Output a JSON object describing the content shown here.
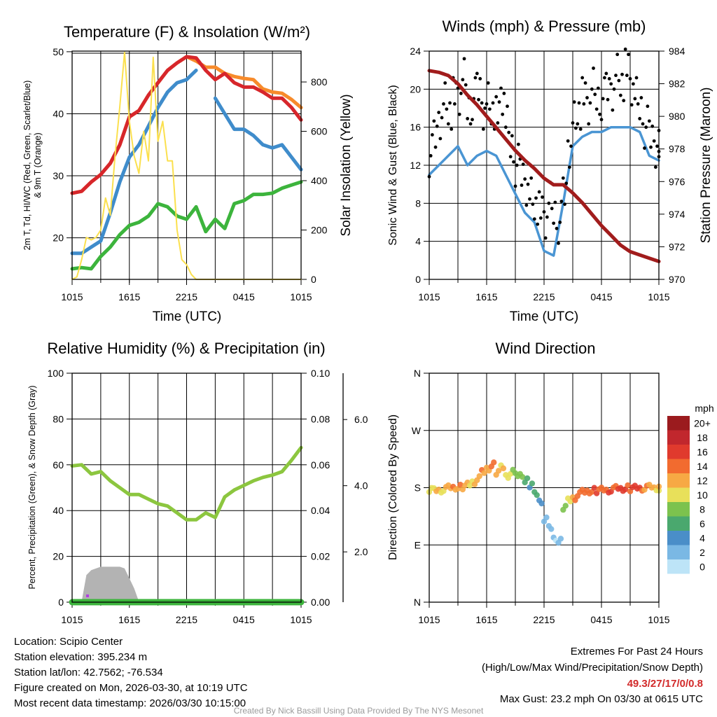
{
  "chart_data": [
    {
      "type": "line",
      "title": "Temperature (F) & Insolation (W/m²)",
      "xlabel": "Time (UTC)",
      "ylabel_lines": [
        "2m T, Td, HI/WC (Red, Green, Scarlet/Blue)",
        "& 9m T (Orange)"
      ],
      "ylabel_right": "Solar Insolation (Yellow)",
      "x_tick_labels": [
        "1015",
        "1615",
        "2215",
        "0415",
        "1015"
      ],
      "y_ticks": [
        20,
        30,
        40,
        50
      ],
      "y_right_ticks": [
        0,
        200,
        400,
        600,
        800
      ],
      "ylim": [
        13.3,
        50.1
      ],
      "ylim_right": [
        0,
        925
      ],
      "x_range_hours": [
        0,
        24
      ],
      "series": [
        {
          "name": "9m T",
          "color": "#f78b2b",
          "axis": "left",
          "step_hours": 1,
          "values": [
            27.2,
            27.5,
            29,
            30.2,
            32,
            35,
            39.5,
            40.5,
            43,
            45,
            47,
            48.2,
            49.2,
            48.5,
            47.5,
            47.5,
            46.5,
            46,
            45.7,
            45.5,
            44,
            43.5,
            43.3,
            42.3,
            41
          ]
        },
        {
          "name": "2m T",
          "color": "#d7262b",
          "axis": "left",
          "step_hours": 1,
          "values": [
            27.2,
            27.5,
            29,
            30.2,
            32,
            35,
            39.5,
            40.5,
            43,
            45,
            47,
            48.2,
            49.2,
            49,
            47,
            45.5,
            46.5,
            45,
            44.3,
            44.3,
            43.5,
            42.5,
            42.5,
            41,
            39
          ]
        },
        {
          "name": "HI/WC",
          "color": "#3f8ccb",
          "axis": "left",
          "step_hours": 1,
          "values": [
            17.5,
            17.5,
            18.5,
            19.5,
            24,
            29,
            33,
            35,
            38,
            41,
            43.5,
            45,
            45.5,
            47,
            null,
            42.5,
            40,
            37.5,
            37.5,
            36.5,
            35,
            34.5,
            35,
            33,
            31
          ]
        },
        {
          "name": "Td",
          "color": "#3cb43c",
          "axis": "left",
          "step_hours": 1,
          "values": [
            15,
            15.2,
            15,
            17,
            18.5,
            20.5,
            22,
            22.5,
            23.5,
            25.5,
            25,
            23.5,
            23,
            25,
            21,
            23,
            21.5,
            25.5,
            26,
            27,
            27,
            27.2,
            28,
            28.5,
            29
          ]
        },
        {
          "name": "Solar Insolation",
          "color": "#fbe04e",
          "axis": "right",
          "step_hours": 0.5,
          "values": [
            0,
            10,
            80,
            170,
            160,
            170,
            200,
            330,
            260,
            500,
            700,
            920,
            640,
            500,
            430,
            600,
            480,
            900,
            560,
            640,
            480,
            480,
            200,
            80,
            60,
            20,
            0,
            0,
            0,
            0,
            0,
            0,
            0,
            0,
            0,
            0,
            0,
            0,
            0,
            0,
            0,
            0,
            0,
            0,
            0,
            0,
            0,
            0,
            0
          ]
        }
      ]
    },
    {
      "type": "line",
      "title": "Winds (mph) & Pressure (mb)",
      "xlabel": "Time (UTC)",
      "ylabel": "Sonic Wind & Gust (Blue, Black)",
      "ylabel_right": "Station Pressure (Maroon)",
      "x_tick_labels": [
        "1015",
        "1615",
        "2215",
        "0415",
        "1015"
      ],
      "y_ticks": [
        0,
        4,
        8,
        12,
        16,
        20,
        24
      ],
      "y_right_ticks": [
        970,
        972,
        974,
        976,
        978,
        980,
        982,
        984
      ],
      "ylim": [
        0,
        24
      ],
      "ylim_right": [
        970,
        984
      ],
      "x_range_hours": [
        0,
        24
      ],
      "series": [
        {
          "name": "Sonic Wind",
          "color": "#4a95d3",
          "axis": "left",
          "step_hours": 1,
          "values": [
            11,
            12,
            13,
            14,
            12,
            13,
            13.5,
            13,
            11,
            9,
            7,
            6,
            3,
            2.5,
            8,
            14,
            15,
            15.5,
            15.5,
            16,
            16,
            16,
            15.5,
            13,
            12.5
          ]
        },
        {
          "name": "Gust",
          "color": "#000000",
          "axis": "left",
          "step_hours": 0.5,
          "style": "points",
          "values": [
            13,
            15,
            17,
            19,
            18,
            19,
            19,
            21,
            18,
            19,
            20,
            18,
            19,
            18,
            17,
            19,
            16,
            14,
            12,
            11,
            10,
            9,
            8,
            7,
            6,
            8,
            7,
            6,
            9,
            14,
            17,
            18,
            19,
            18,
            20,
            19,
            19,
            20,
            20,
            22,
            21,
            22,
            20,
            19,
            18,
            16,
            15,
            14,
            14
          ]
        },
        {
          "name": "Station Pressure",
          "color": "#a11c1c",
          "axis": "right",
          "step_hours": 1,
          "values": [
            982.8,
            982.7,
            982.5,
            982,
            981.3,
            980.7,
            980,
            979.3,
            978.6,
            977.9,
            977.3,
            976.8,
            976.2,
            975.8,
            975.8,
            975.3,
            974.7,
            974,
            973.3,
            972.7,
            972.1,
            971.7,
            971.5,
            971.3,
            971.1
          ]
        }
      ]
    },
    {
      "type": "line",
      "title": "Relative Humidity (%) & Precipitation (in)",
      "ylabel": "Percent, Precipitation (Green), & Snow Depth (Gray)",
      "x_tick_labels": [
        "1015",
        "1615",
        "2215",
        "0415",
        "1015"
      ],
      "y_ticks": [
        0,
        20,
        40,
        60,
        80,
        100
      ],
      "y_right_ticks": [
        "0.00",
        "0.02",
        "0.04",
        "0.06",
        "0.08",
        "0.10"
      ],
      "snow_ticks": [
        "2.0",
        "4.0",
        "6.0"
      ],
      "ylim": [
        0,
        100
      ],
      "ylim_right": [
        0,
        0.1
      ],
      "snow_ylim": [
        0.48,
        7.4
      ],
      "x_range_hours": [
        0,
        24
      ],
      "series": [
        {
          "name": "Relative Humidity",
          "color": "#8cc63f",
          "axis": "left",
          "step_hours": 1,
          "values": [
            59.5,
            60,
            56,
            57,
            53,
            50,
            47,
            47,
            45,
            43,
            42,
            39,
            36,
            36,
            39,
            37,
            46,
            49,
            51,
            53,
            54.5,
            55.5,
            57,
            62,
            67.5
          ]
        },
        {
          "name": "Precipitation",
          "color": "#3cb43c",
          "axis": "right",
          "step_hours": 1,
          "values": [
            0,
            0,
            0,
            0,
            0,
            0,
            0,
            0,
            0,
            0,
            0,
            0,
            0,
            0,
            0,
            0,
            0,
            0,
            0,
            0,
            0,
            0,
            0,
            0,
            0
          ]
        },
        {
          "name": "Snow Depth",
          "color": "#b3b3b3",
          "axis": "snow",
          "style": "area",
          "hours": [
            1,
            1.5,
            2,
            3,
            4,
            5,
            5.5,
            6,
            6.5,
            7
          ],
          "values": [
            0.5,
            1.3,
            1.45,
            1.55,
            1.55,
            1.55,
            1.5,
            1.2,
            0.9,
            0.5
          ]
        }
      ]
    },
    {
      "type": "scatter",
      "title": "Wind Direction",
      "ylabel": "Direction (Colored By Speed)",
      "x_tick_labels": [
        "1015",
        "1615",
        "2215",
        "0415",
        "1015"
      ],
      "y_tick_labels": [
        "N",
        "E",
        "S",
        "W",
        "N"
      ],
      "y_ticks": [
        0,
        90,
        180,
        270,
        360
      ],
      "ylim": [
        0,
        360
      ],
      "x_range_hours": [
        0,
        24
      ],
      "step_hours": 0.5,
      "direction_deg": [
        178,
        176,
        177,
        178,
        179,
        180,
        180,
        182,
        185,
        190,
        195,
        203,
        210,
        215,
        205,
        212,
        200,
        205,
        198,
        200,
        190,
        185,
        170,
        160,
        130,
        115,
        100,
        95,
        150,
        160,
        165,
        170,
        172,
        174,
        175,
        176,
        177,
        177,
        177,
        178,
        178,
        179,
        179,
        180,
        180,
        180,
        180,
        179,
        177
      ],
      "speed_mph": [
        11,
        11.5,
        12,
        12.5,
        13,
        13.5,
        14,
        13,
        12,
        12.5,
        13,
        13.5,
        13.5,
        14,
        13,
        12,
        11,
        10,
        9,
        8,
        7,
        6.5,
        6,
        5,
        3,
        2.8,
        2.5,
        3,
        8,
        11,
        14,
        14.5,
        15,
        15,
        15.5,
        15.5,
        15.5,
        15.5,
        16,
        16,
        16,
        16,
        16,
        16,
        15.5,
        14.5,
        13,
        12.5,
        12.5
      ],
      "colorbar": {
        "title": "mph",
        "labels": [
          "20+",
          "18",
          "16",
          "14",
          "12",
          "10",
          "8",
          "6",
          "4",
          "2",
          "0"
        ],
        "colors": [
          "#9b1b1e",
          "#c1272d",
          "#e03a2d",
          "#f26b2f",
          "#f7a944",
          "#e8e05a",
          "#7cc24e",
          "#4aa86e",
          "#4a8ec8",
          "#7ab8e4",
          "#bde4f7"
        ]
      }
    }
  ],
  "info": {
    "location": "Location: Scipio Center",
    "elevation": "Station elevation: 395.234 m",
    "latlon": "Station lat/lon: 42.7562; -76.534",
    "created": "Figure created on Mon, 2026-03-30, at 10:19 UTC",
    "recent": "Most recent data timestamp: 2026/03/30 10:15:00"
  },
  "extremes": {
    "heading": "Extremes For Past 24 Hours",
    "legend": "(High/Low/Max Wind/Precipitation/Snow Depth)",
    "values": "49.3/27/17/0/0.8",
    "max_gust": "Max Gust: 23.2 mph On 03/30 at 0615 UTC"
  },
  "credit": "Created By Nick Bassill Using Data Provided By The NYS Mesonet"
}
